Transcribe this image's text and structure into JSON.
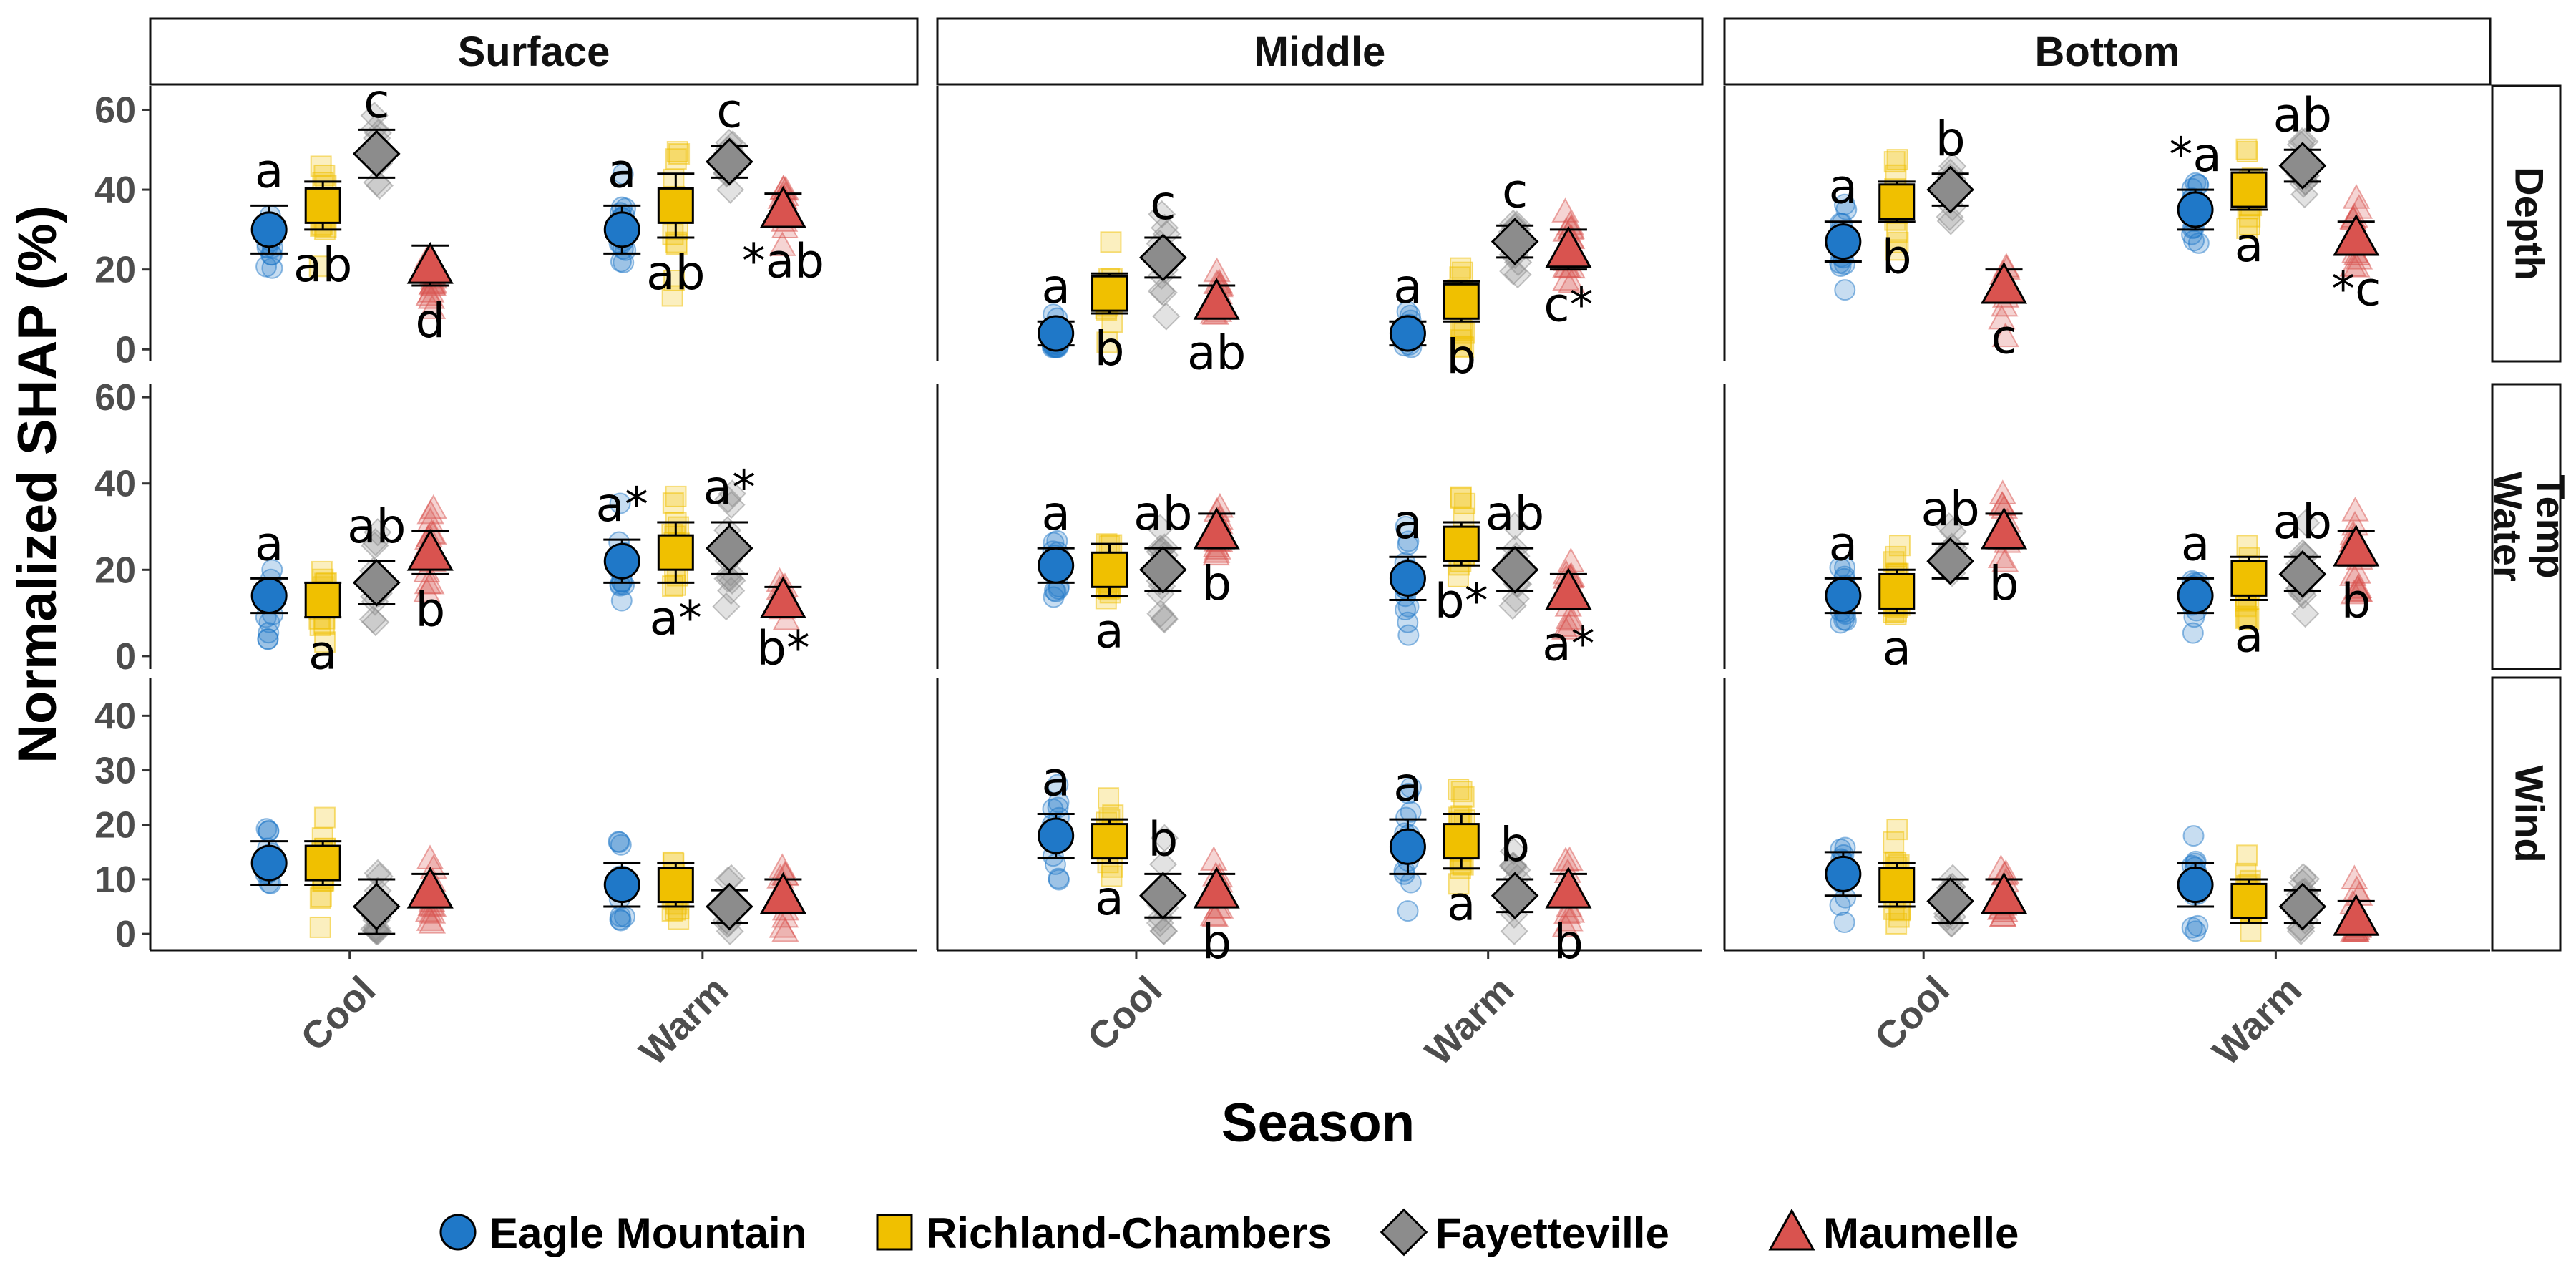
{
  "chart_data": {
    "type": "scatter",
    "ylabel": "Normalized SHAP (%)",
    "xlabel": "Season",
    "columns": [
      "Surface",
      "Middle",
      "Bottom"
    ],
    "rows": [
      "Depth",
      "Water Temp",
      "Wind"
    ],
    "row_labels": [
      "Depth",
      "Water\nTemp",
      "Wind"
    ],
    "seasons": [
      "Cool",
      "Warm"
    ],
    "row_yticks": [
      [
        0,
        20,
        40,
        60
      ],
      [
        0,
        20,
        40,
        60
      ],
      [
        0,
        10,
        20,
        30,
        40
      ]
    ],
    "row_ylim": [
      [
        -3,
        66
      ],
      [
        -3,
        63
      ],
      [
        -3,
        47
      ]
    ],
    "colors": {
      "Eagle Mountain": "#1f78c8",
      "Richland-Chambers": "#f0c000",
      "Fayetteville": "#8c8c8c",
      "Maumelle": "#d9534f"
    },
    "shapes": {
      "Eagle Mountain": "circle",
      "Richland-Chambers": "square",
      "Fayetteville": "diamond",
      "Maumelle": "triangle"
    },
    "series": [
      {
        "name": "Eagle Mountain",
        "values": {
          "Depth": {
            "Surface": [
              [
                30,
                6,
                "a"
              ],
              [
                30,
                6,
                "a"
              ]
            ],
            "Middle": [
              [
                4,
                3,
                "a"
              ],
              [
                4,
                3,
                "a"
              ]
            ],
            "Bottom": [
              [
                27,
                5,
                "a"
              ],
              [
                35,
                5,
                "*a"
              ]
            ]
          },
          "Water Temp": {
            "Surface": [
              [
                14,
                4,
                "a"
              ],
              [
                22,
                5,
                "a*"
              ]
            ],
            "Middle": [
              [
                21,
                4,
                "a"
              ],
              [
                18,
                5,
                "a"
              ]
            ],
            "Bottom": [
              [
                14,
                4,
                "a"
              ],
              [
                14,
                4,
                "a"
              ]
            ]
          },
          "Wind": {
            "Surface": [
              [
                13,
                4,
                ""
              ],
              [
                9,
                4,
                ""
              ]
            ],
            "Middle": [
              [
                18,
                4,
                "a"
              ],
              [
                16,
                5,
                "a"
              ]
            ],
            "Bottom": [
              [
                11,
                4,
                ""
              ],
              [
                9,
                4,
                ""
              ]
            ]
          }
        }
      },
      {
        "name": "Richland-Chambers",
        "values": {
          "Depth": {
            "Surface": [
              [
                36,
                6,
                "ab"
              ],
              [
                36,
                8,
                "ab"
              ]
            ],
            "Middle": [
              [
                14,
                5,
                "b"
              ],
              [
                12,
                5,
                "b"
              ]
            ],
            "Bottom": [
              [
                37,
                5,
                "b"
              ],
              [
                40,
                5,
                "a"
              ]
            ]
          },
          "Water Temp": {
            "Surface": [
              [
                13,
                4,
                "a"
              ],
              [
                24,
                7,
                "a*"
              ]
            ],
            "Middle": [
              [
                20,
                6,
                "a"
              ],
              [
                26,
                5,
                "b*"
              ]
            ],
            "Bottom": [
              [
                15,
                5,
                "a"
              ],
              [
                18,
                5,
                "a"
              ]
            ]
          },
          "Wind": {
            "Surface": [
              [
                13,
                4,
                ""
              ],
              [
                9,
                4,
                ""
              ]
            ],
            "Middle": [
              [
                17,
                4,
                "a"
              ],
              [
                17,
                5,
                "a"
              ]
            ],
            "Bottom": [
              [
                9,
                4,
                ""
              ],
              [
                6,
                4,
                ""
              ]
            ]
          }
        }
      },
      {
        "name": "Fayetteville",
        "values": {
          "Depth": {
            "Surface": [
              [
                49,
                6,
                "c"
              ],
              [
                47,
                4,
                "c"
              ]
            ],
            "Middle": [
              [
                23,
                5,
                "c"
              ],
              [
                27,
                4,
                "c"
              ]
            ],
            "Bottom": [
              [
                40,
                4,
                "b"
              ],
              [
                46,
                4,
                "ab"
              ]
            ]
          },
          "Water Temp": {
            "Surface": [
              [
                17,
                5,
                "ab"
              ],
              [
                25,
                6,
                "a*"
              ]
            ],
            "Middle": [
              [
                20,
                5,
                "ab"
              ],
              [
                20,
                5,
                "ab"
              ]
            ],
            "Bottom": [
              [
                22,
                4,
                "ab"
              ],
              [
                19,
                4,
                "ab"
              ]
            ]
          },
          "Wind": {
            "Surface": [
              [
                5,
                5,
                ""
              ],
              [
                5,
                3,
                ""
              ]
            ],
            "Middle": [
              [
                7,
                4,
                "b"
              ],
              [
                7,
                3,
                "b"
              ]
            ],
            "Bottom": [
              [
                6,
                4,
                ""
              ],
              [
                5,
                3,
                ""
              ]
            ]
          }
        }
      },
      {
        "name": "Maumelle",
        "values": {
          "Depth": {
            "Surface": [
              [
                21,
                5,
                "d"
              ],
              [
                35,
                4,
                "*ab"
              ]
            ],
            "Middle": [
              [
                12,
                4,
                "ab"
              ],
              [
                25,
                5,
                "c*"
              ]
            ],
            "Bottom": [
              [
                16,
                4,
                "c"
              ],
              [
                28,
                4,
                "*c"
              ]
            ]
          },
          "Water Temp": {
            "Surface": [
              [
                24,
                5,
                "b"
              ],
              [
                13,
                3,
                "b*"
              ]
            ],
            "Middle": [
              [
                29,
                4,
                "b"
              ],
              [
                15,
                4,
                "a*"
              ]
            ],
            "Bottom": [
              [
                29,
                4,
                "b"
              ],
              [
                25,
                4,
                "b"
              ]
            ]
          },
          "Wind": {
            "Surface": [
              [
                8,
                3,
                ""
              ],
              [
                7,
                3,
                ""
              ]
            ],
            "Middle": [
              [
                8,
                3,
                "b"
              ],
              [
                8,
                3,
                "b"
              ]
            ],
            "Bottom": [
              [
                7,
                3,
                ""
              ],
              [
                3,
                3,
                ""
              ]
            ]
          }
        }
      }
    ],
    "legend": {
      "position": "bottom",
      "entries": [
        "Eagle Mountain",
        "Richland-Chambers",
        "Fayetteville",
        "Maumelle"
      ]
    },
    "grid": false
  }
}
